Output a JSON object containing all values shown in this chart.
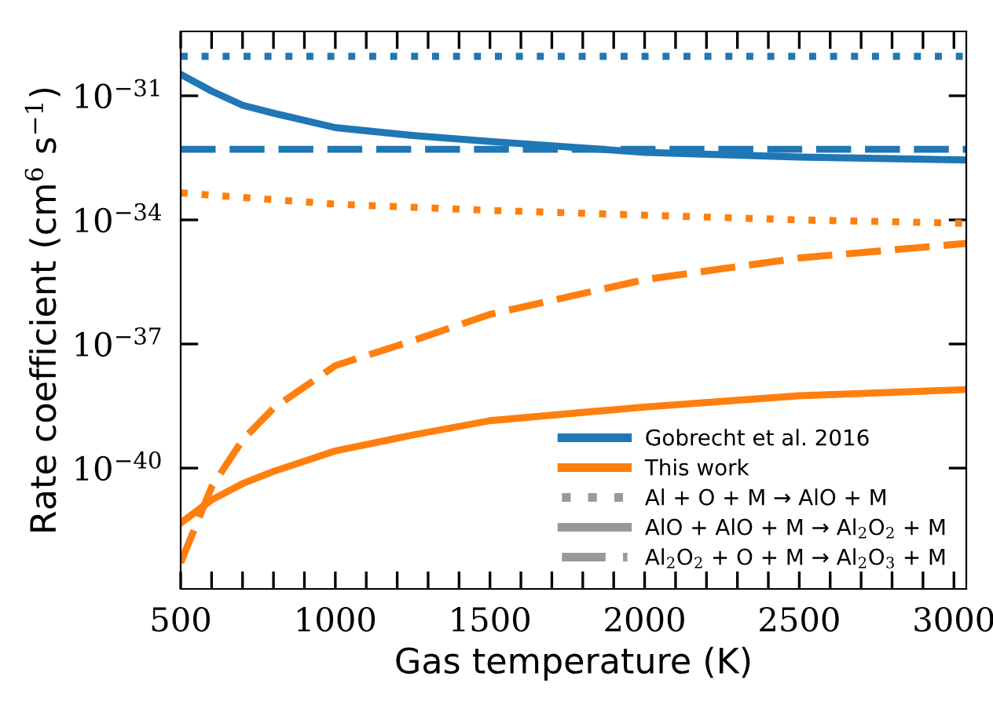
{
  "chart_data": {
    "type": "line",
    "xlabel": "Gas temperature (K)",
    "ylabel": "Rate coefficient (cm$^{6}$ s$^{−1}$)",
    "log": "y",
    "xlim": [
      500,
      3040
    ],
    "ylim": [
      1.2e-43,
      3.6e-30
    ],
    "xticks": [
      500,
      {
        "value": 600,
        "label": null
      },
      {
        "value": 700,
        "label": null
      },
      {
        "value": 800,
        "label": null
      },
      {
        "value": 900,
        "label": null
      },
      1000,
      {
        "value": 1100,
        "label": null
      },
      {
        "value": 1200,
        "label": null
      },
      {
        "value": 1300,
        "label": null
      },
      {
        "value": 1400,
        "label": null
      },
      1500,
      {
        "value": 1600,
        "label": null
      },
      {
        "value": 1700,
        "label": null
      },
      {
        "value": 1800,
        "label": null
      },
      {
        "value": 1900,
        "label": null
      },
      2000,
      {
        "value": 2100,
        "label": null
      },
      {
        "value": 2200,
        "label": null
      },
      {
        "value": 2300,
        "label": null
      },
      {
        "value": 2400,
        "label": null
      },
      2500,
      {
        "value": 2600,
        "label": null
      },
      {
        "value": 2700,
        "label": null
      },
      {
        "value": 2800,
        "label": null
      },
      {
        "value": 2900,
        "label": null
      },
      3000
    ],
    "yticks": [
      {
        "value": 1e-31,
        "label": "10$^{−31}$"
      },
      {
        "value": 1e-34,
        "label": "10$^{−34}$"
      },
      {
        "value": 1e-37,
        "label": "10$^{−37}$"
      },
      {
        "value": 1e-40,
        "label": "10$^{−40}$"
      }
    ],
    "grid": false,
    "legend": "bottom right",
    "marker": "none",
    "series": [
      {
        "name": "Gobrecht et al. 2016",
        "color": "#1f77b4",
        "line_style": "dotted",
        "x": [
          500,
          3040
        ],
        "values": [
          9e-31,
          9e-31
        ]
      },
      {
        "color": "#1f77b4",
        "line_style": "solid",
        "x": [
          500,
          600,
          700,
          800,
          1000,
          1250,
          1500,
          2000,
          2500,
          3040
        ],
        "values": [
          3.3e-31,
          1.3e-31,
          5.9e-32,
          3.8e-32,
          1.7e-32,
          1.1e-32,
          7.9e-33,
          4.3e-33,
          3.3e-33,
          2.8e-33
        ]
      },
      {
        "color": "#1f77b4",
        "line_style": "dashed",
        "x": [
          500,
          3040
        ],
        "values": [
          5.1e-33,
          5.1e-33
        ]
      },
      {
        "name": "This work",
        "color": "#ff7f0e",
        "line_style": "dotted",
        "x": [
          500,
          1000,
          1500,
          2000,
          2500,
          3040
        ],
        "values": [
          4.5e-34,
          2.4e-34,
          1.7e-34,
          1.3e-34,
          1e-34,
          8.3e-35
        ]
      },
      {
        "color": "#ff7f0e",
        "line_style": "solid",
        "x": [
          500,
          600,
          700,
          800,
          1000,
          1250,
          1500,
          2000,
          2500,
          3040
        ],
        "values": [
          4.7e-42,
          1.7e-41,
          4.2e-41,
          8.3e-41,
          2.6e-40,
          6.3e-40,
          1.4e-39,
          3e-39,
          5.6e-39,
          7.9e-39
        ]
      },
      {
        "color": "#ff7f0e",
        "line_style": "dashed",
        "x": [
          500,
          600,
          700,
          800,
          1000,
          1250,
          1500,
          2000,
          2500,
          3040
        ],
        "values": [
          5.2e-43,
          3.5e-41,
          4.8e-40,
          2.8e-39,
          3e-38,
          1.2e-37,
          5.2e-37,
          3.6e-36,
          1.2e-35,
          2.7e-35
        ]
      }
    ],
    "annotations": [
      "Al + O + M → AlO + M",
      "AlO + AlO + M → Al$_{2}$O$_{2}$ + M",
      "Al$_{2}$O$_{2}$ + O + M → Al$_{2}$O$_{3}$ + M"
    ]
  }
}
